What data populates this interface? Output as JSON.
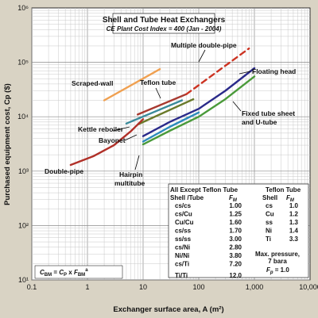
{
  "chart_data": {
    "type": "line",
    "title": "Shell and Tube Heat Exchangers",
    "subtitle": "CE Plant Cost Index = 400 (Jan - 2004)",
    "xlabel": "Exchanger surface area, A (m²)",
    "ylabel": "Purchased equipment cost, Cp ($)",
    "xscale": "log",
    "yscale": "log",
    "xlim": [
      0.1,
      10000
    ],
    "ylim": [
      10,
      1000000
    ],
    "x_ticks": [
      "0.1",
      "1",
      "10",
      "100",
      "1,000",
      "10,000"
    ],
    "y_ticks": [
      "10¹",
      "10²",
      "10³",
      "10⁴",
      "10⁵",
      "10⁶"
    ],
    "grid": true,
    "series": [
      {
        "name": "Scraped-wall",
        "color": "#f0a050",
        "dash": false,
        "x": [
          2,
          20
        ],
        "y": [
          20000,
          75000
        ]
      },
      {
        "name": "Teflon tube",
        "color": "#a83a30",
        "dash": false,
        "x": [
          8,
          60
        ],
        "y": [
          11000,
          26000
        ]
      },
      {
        "name": "Multiple double-pipe",
        "color": "#cc3322",
        "dash": true,
        "x": [
          60,
          800
        ],
        "y": [
          26000,
          180000
        ]
      },
      {
        "name": "Kettle reboiler",
        "color": "#3a8a9a",
        "dash": false,
        "x": [
          5,
          50
        ],
        "y": [
          7500,
          20000
        ]
      },
      {
        "name": "Bayonet",
        "color": "#6a7a2a",
        "dash": false,
        "x": [
          8,
          80
        ],
        "y": [
          7200,
          21000
        ]
      },
      {
        "name": "Double-pipe",
        "color": "#b03028",
        "dash": false,
        "x": [
          0.5,
          1.3,
          3,
          6,
          10
        ],
        "y": [
          1300,
          1900,
          3000,
          5400,
          9000
        ]
      },
      {
        "name": "Floating head",
        "color": "#2a2a8a",
        "dash": false,
        "x": [
          10,
          30,
          100,
          300,
          1000
        ],
        "y": [
          4400,
          8000,
          14000,
          30000,
          78000
        ]
      },
      {
        "name": "Fixed tube sheet and U-tube",
        "color": "#4a9a3a",
        "dash": false,
        "x": [
          10,
          30,
          100,
          300,
          1000
        ],
        "y": [
          3100,
          5500,
          10000,
          21000,
          55000
        ]
      },
      {
        "name": "Hairpin multitube",
        "color": "#2a8abb",
        "dash": false,
        "x": [
          10,
          30,
          100
        ],
        "y": [
          3500,
          6500,
          12000
        ]
      }
    ],
    "annotations": [
      {
        "text": "Scraped-wall"
      },
      {
        "text": "Teflon tube"
      },
      {
        "text": "Multiple double-pipe"
      },
      {
        "text": "Floating head"
      },
      {
        "text": "Fixed tube sheet"
      },
      {
        "text": "and U-tube"
      },
      {
        "text": "Kettle reboiler"
      },
      {
        "text": "Bayonet"
      },
      {
        "text": "Double-pipe"
      },
      {
        "text": "Hairpin"
      },
      {
        "text": "multitube"
      }
    ],
    "formula": "C_BM = C_P × F_BM^a",
    "material_table": {
      "title": "All Except Teflon Tube",
      "col_headers": [
        "Shell /Tube",
        "F_M"
      ],
      "rows": [
        [
          "cs/cs",
          "1.00"
        ],
        [
          "cs/Cu",
          "1.25"
        ],
        [
          "Cu/Cu",
          "1.60"
        ],
        [
          "cs/ss",
          "1.70"
        ],
        [
          "ss/ss",
          "3.00"
        ],
        [
          "cs/Ni",
          "2.80"
        ],
        [
          "Ni/Ni",
          "3.80"
        ],
        [
          "cs/Ti",
          "7.20"
        ],
        [
          "Ti/Ti",
          "12.0"
        ]
      ]
    },
    "teflon_table": {
      "title": "Teflon Tube",
      "col_headers": [
        "Shell",
        "F_M"
      ],
      "rows": [
        [
          "cs",
          "1.0"
        ],
        [
          "Cu",
          "1.2"
        ],
        [
          "ss",
          "1.3"
        ],
        [
          "Ni",
          "1.4"
        ],
        [
          "Ti",
          "3.3"
        ]
      ],
      "note1": "Max. pressure,",
      "note2": "7 bara",
      "fp": "F_p = 1.0"
    }
  }
}
